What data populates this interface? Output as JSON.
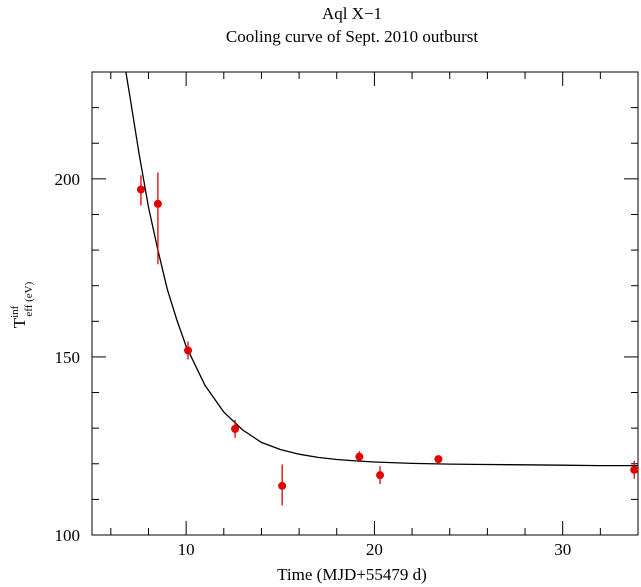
{
  "chart_data": {
    "type": "scatter",
    "title": "Aql X−1",
    "subtitle": "Cooling curve of Sept. 2010 outburst",
    "xlabel": "Time (MJD+55479 d)",
    "ylabel": {
      "base": "T",
      "superscript": "inf",
      "subscript": "eff (eV)"
    },
    "xlim": [
      5,
      34
    ],
    "ylim": [
      100,
      230
    ],
    "x_ticks": [
      10,
      20,
      30
    ],
    "x_tick_labels": [
      "10",
      "20",
      "30"
    ],
    "y_ticks": [
      100,
      150,
      200
    ],
    "y_tick_labels": [
      "100",
      "150",
      "200"
    ],
    "grid": false,
    "series": [
      {
        "type": "scatter",
        "color": "#e00000",
        "points": [
          {
            "x": 7.6,
            "y": 197.0,
            "err_lo": 192.5,
            "err_hi": 201.0
          },
          {
            "x": 8.5,
            "y": 193.0,
            "err_lo": 176.0,
            "err_hi": 201.8
          },
          {
            "x": 10.1,
            "y": 151.8,
            "err_lo": 149.3,
            "err_hi": 154.3
          },
          {
            "x": 12.6,
            "y": 129.8,
            "err_lo": 127.3,
            "err_hi": 132.3
          },
          {
            "x": 15.1,
            "y": 113.8,
            "err_lo": 108.3,
            "err_hi": 119.8
          },
          {
            "x": 19.2,
            "y": 122.0,
            "err_lo": 120.5,
            "err_hi": 123.5
          },
          {
            "x": 20.3,
            "y": 116.8,
            "err_lo": 114.3,
            "err_hi": 119.3
          },
          {
            "x": 23.4,
            "y": 121.3,
            "err_lo": 120.0,
            "err_hi": 122.3
          },
          {
            "x": 33.8,
            "y": 118.3,
            "err_lo": 115.8,
            "err_hi": 120.8
          }
        ]
      },
      {
        "type": "line",
        "color": "#000000",
        "points": [
          {
            "x": 6.8,
            "y": 230.0
          },
          {
            "x": 7.0,
            "y": 223.5
          },
          {
            "x": 7.5,
            "y": 207.0
          },
          {
            "x": 8.0,
            "y": 192.0
          },
          {
            "x": 8.5,
            "y": 180.0
          },
          {
            "x": 9.0,
            "y": 169.0
          },
          {
            "x": 9.5,
            "y": 160.5
          },
          {
            "x": 10.0,
            "y": 153.0
          },
          {
            "x": 11.0,
            "y": 142.0
          },
          {
            "x": 12.0,
            "y": 134.5
          },
          {
            "x": 13.0,
            "y": 129.5
          },
          {
            "x": 14.0,
            "y": 126.0
          },
          {
            "x": 15.0,
            "y": 124.0
          },
          {
            "x": 16.0,
            "y": 122.7
          },
          {
            "x": 17.0,
            "y": 121.8
          },
          {
            "x": 18.0,
            "y": 121.2
          },
          {
            "x": 19.0,
            "y": 120.8
          },
          {
            "x": 20.0,
            "y": 120.5
          },
          {
            "x": 22.0,
            "y": 120.1
          },
          {
            "x": 24.0,
            "y": 119.9
          },
          {
            "x": 26.0,
            "y": 119.8
          },
          {
            "x": 28.0,
            "y": 119.7
          },
          {
            "x": 30.0,
            "y": 119.6
          },
          {
            "x": 32.0,
            "y": 119.5
          },
          {
            "x": 34.0,
            "y": 119.5
          }
        ]
      }
    ]
  }
}
